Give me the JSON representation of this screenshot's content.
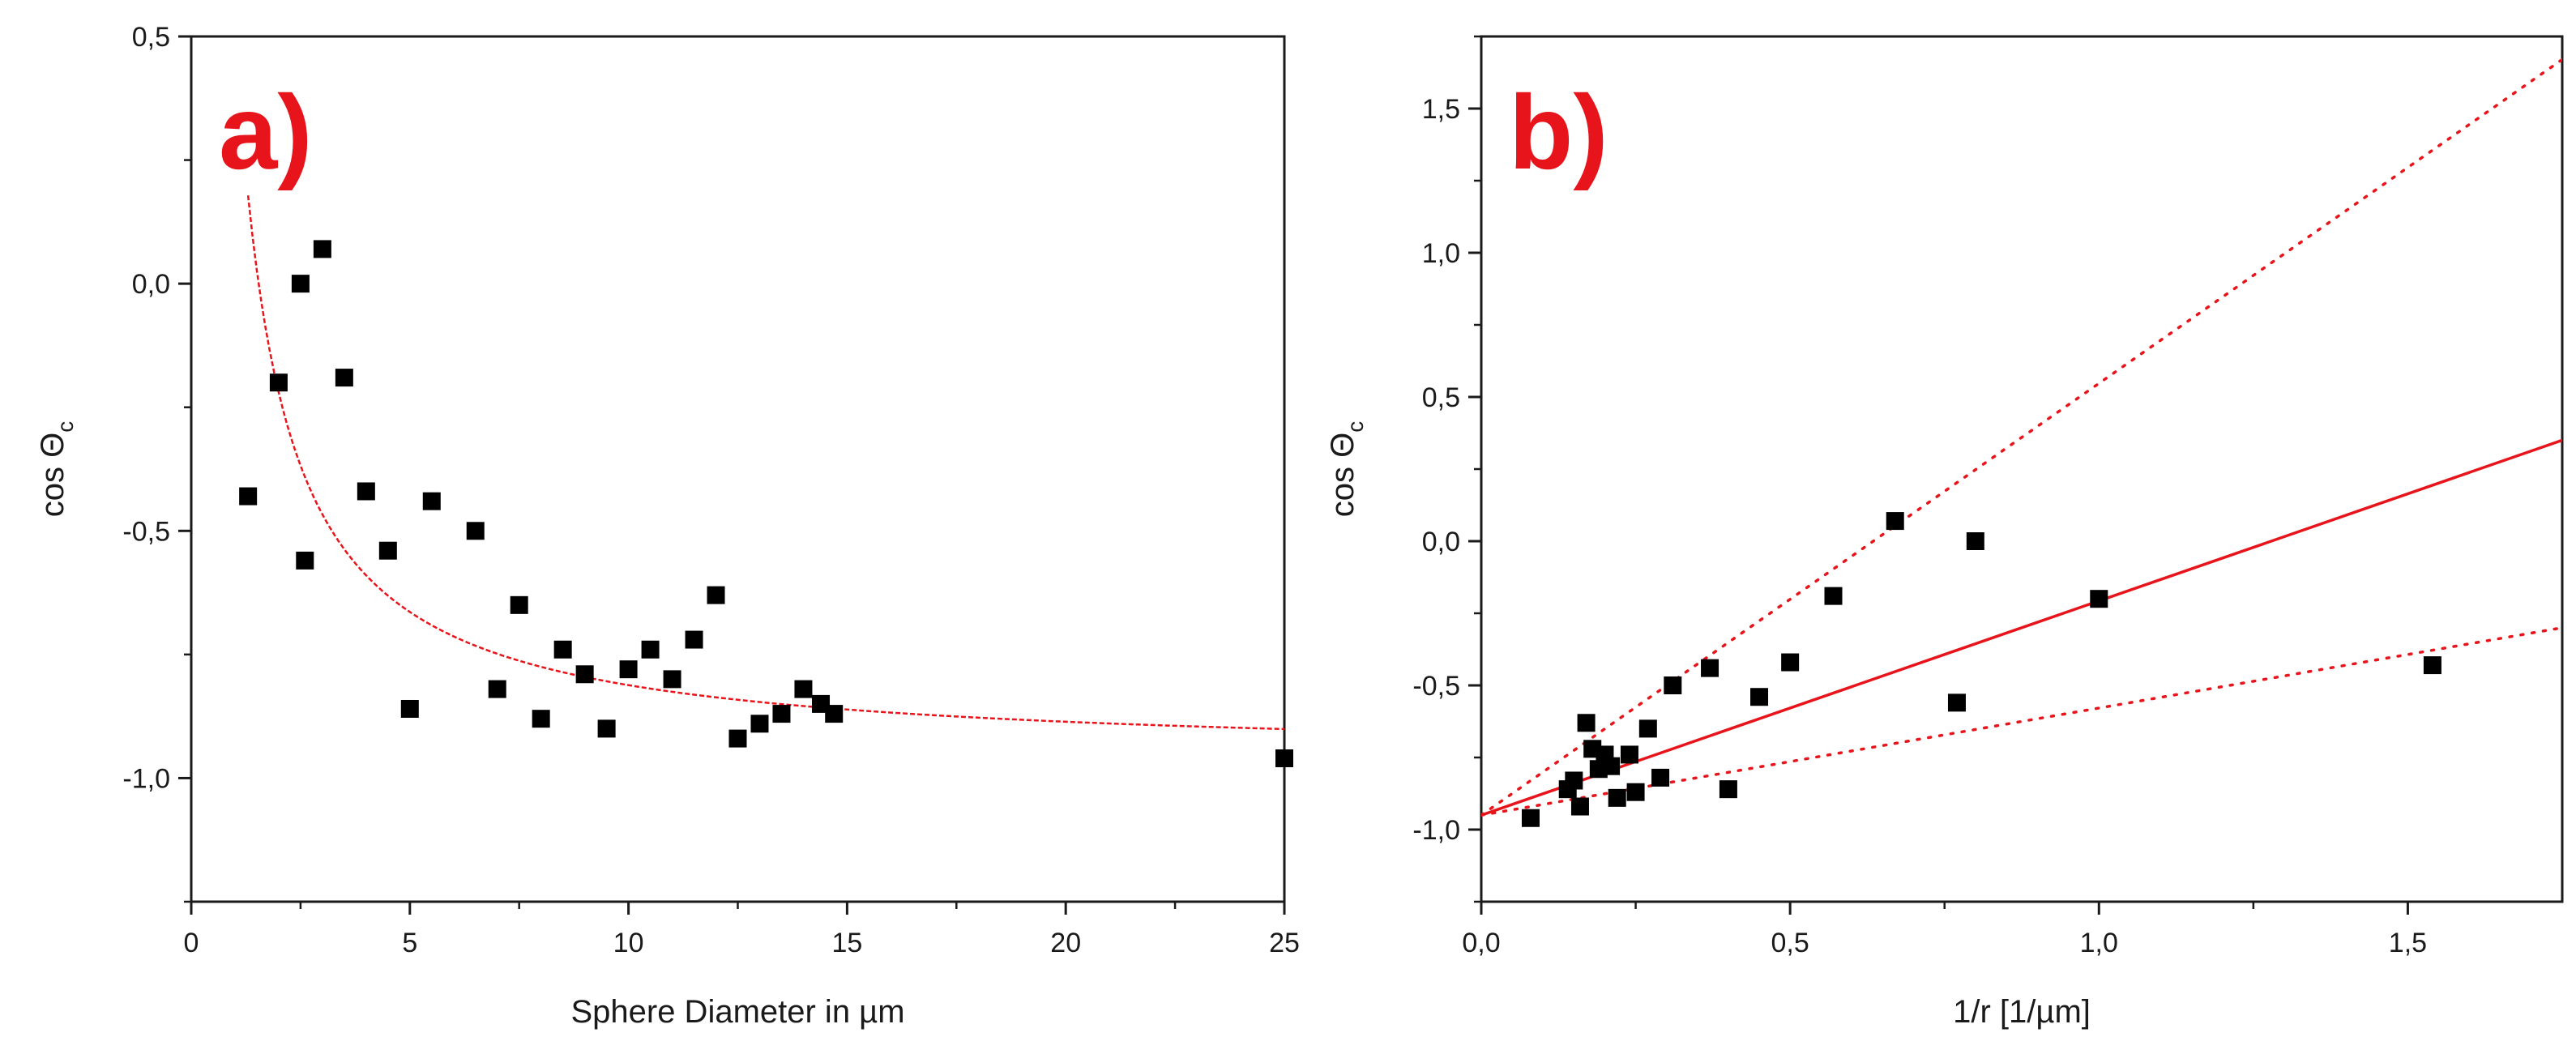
{
  "chart_data": [
    {
      "panel_label": "a)",
      "type": "scatter",
      "xlabel": "Sphere Diameter in µm",
      "ylabel_main": "cos Θ",
      "ylabel_sub": "c",
      "xlim": [
        0,
        25
      ],
      "ylim": [
        -1.25,
        0.5
      ],
      "xticks": [
        0,
        5,
        10,
        15,
        20,
        25
      ],
      "xtick_labels": [
        "0",
        "5",
        "10",
        "15",
        "20",
        "25"
      ],
      "yticks": [
        0.5,
        0.0,
        -0.5,
        -1.0
      ],
      "ytick_labels": [
        "0,5",
        "0,0",
        "-0,5",
        "-1,0"
      ],
      "series": [
        {
          "name": "data",
          "style": "square-marker",
          "color": "#000000",
          "points": [
            [
              1.3,
              -0.43
            ],
            [
              2.0,
              -0.2
            ],
            [
              2.5,
              0.0
            ],
            [
              2.6,
              -0.56
            ],
            [
              3.0,
              0.07
            ],
            [
              3.5,
              -0.19
            ],
            [
              4.0,
              -0.42
            ],
            [
              4.5,
              -0.54
            ],
            [
              5.0,
              -0.86
            ],
            [
              5.5,
              -0.44
            ],
            [
              6.5,
              -0.5
            ],
            [
              7.0,
              -0.82
            ],
            [
              7.5,
              -0.65
            ],
            [
              8.0,
              -0.88
            ],
            [
              8.5,
              -0.74
            ],
            [
              9.0,
              -0.79
            ],
            [
              9.5,
              -0.9
            ],
            [
              10.0,
              -0.78
            ],
            [
              10.5,
              -0.74
            ],
            [
              11.0,
              -0.8
            ],
            [
              11.5,
              -0.72
            ],
            [
              12.0,
              -0.63
            ],
            [
              12.5,
              -0.92
            ],
            [
              13.0,
              -0.89
            ],
            [
              13.5,
              -0.87
            ],
            [
              14.0,
              -0.82
            ],
            [
              14.4,
              -0.85
            ],
            [
              14.7,
              -0.87
            ],
            [
              25.0,
              -0.96
            ]
          ]
        },
        {
          "name": "fit",
          "style": "dashed-curve",
          "color": "#e8141b",
          "function": "y = a + b / x",
          "a": -0.96,
          "b": 1.48,
          "x_range": [
            1.3,
            25
          ]
        }
      ]
    },
    {
      "panel_label": "b)",
      "type": "scatter",
      "xlabel": "1/r [1/µm]",
      "ylabel_main": "cos Θ",
      "ylabel_sub": "c",
      "xlim": [
        0,
        1.75
      ],
      "ylim": [
        -1.25,
        1.75
      ],
      "xticks": [
        0.0,
        0.5,
        1.0,
        1.5
      ],
      "xtick_labels": [
        "0,0",
        "0,5",
        "1,0",
        "1,5"
      ],
      "yticks": [
        1.5,
        1.0,
        0.5,
        0.0,
        -0.5,
        -1.0
      ],
      "ytick_labels": [
        "1,5",
        "1,0",
        "0,5",
        "0,0",
        "-0,5",
        "-1,0"
      ],
      "series": [
        {
          "name": "data",
          "style": "square-marker",
          "color": "#000000",
          "points": [
            [
              0.08,
              -0.96
            ],
            [
              0.14,
              -0.86
            ],
            [
              0.15,
              -0.83
            ],
            [
              0.16,
              -0.92
            ],
            [
              0.17,
              -0.63
            ],
            [
              0.18,
              -0.72
            ],
            [
              0.19,
              -0.79
            ],
            [
              0.2,
              -0.74
            ],
            [
              0.21,
              -0.78
            ],
            [
              0.22,
              -0.89
            ],
            [
              0.24,
              -0.74
            ],
            [
              0.25,
              -0.87
            ],
            [
              0.27,
              -0.65
            ],
            [
              0.29,
              -0.82
            ],
            [
              0.31,
              -0.5
            ],
            [
              0.37,
              -0.44
            ],
            [
              0.4,
              -0.86
            ],
            [
              0.45,
              -0.54
            ],
            [
              0.5,
              -0.42
            ],
            [
              0.57,
              -0.19
            ],
            [
              0.67,
              0.07
            ],
            [
              0.77,
              -0.56
            ],
            [
              0.8,
              0.0
            ],
            [
              1.0,
              -0.2
            ],
            [
              1.54,
              -0.43
            ]
          ]
        },
        {
          "name": "linear fit",
          "style": "solid-line",
          "color": "#e8141b",
          "x": [
            0,
            1.75
          ],
          "y": [
            -0.95,
            0.35
          ]
        },
        {
          "name": "upper bound",
          "style": "dotted-line",
          "color": "#e8141b",
          "x": [
            0,
            1.75
          ],
          "y": [
            -0.95,
            1.67
          ]
        },
        {
          "name": "lower bound",
          "style": "dotted-line",
          "color": "#e8141b",
          "x": [
            0,
            1.75
          ],
          "y": [
            -0.95,
            -0.3
          ]
        }
      ]
    }
  ],
  "colors": {
    "axis": "#1a1a1a",
    "marker": "#000000",
    "fit": "#e8141b",
    "panel_label": "#e8141b"
  }
}
